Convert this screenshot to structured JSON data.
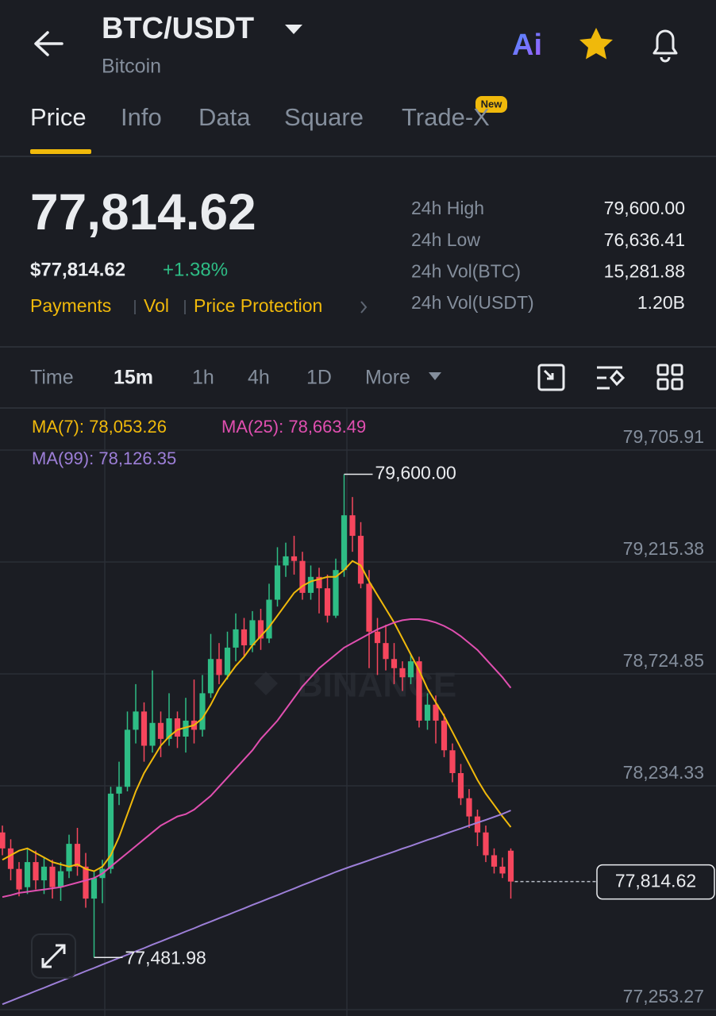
{
  "header": {
    "title": "BTC/USDT",
    "subtitle": "Bitcoin",
    "ai": "Ai"
  },
  "tabs": {
    "items": [
      "Price",
      "Info",
      "Data",
      "Square",
      "Trade-X"
    ],
    "badge": "New"
  },
  "ticker": {
    "price": "77,814.62",
    "fiat": "$77,814.62",
    "change": "+1.38%",
    "links": [
      "Payments",
      "Vol",
      "Price Protection"
    ],
    "stats": [
      {
        "label": "24h High",
        "value": "79,600.00"
      },
      {
        "label": "24h Low",
        "value": "76,636.41"
      },
      {
        "label": "24h Vol(BTC)",
        "value": "15,281.88"
      },
      {
        "label": "24h Vol(USDT)",
        "value": "1.20B"
      }
    ]
  },
  "intervals": [
    "Time",
    "15m",
    "1h",
    "4h",
    "1D",
    "More"
  ],
  "chart_data": {
    "type": "candlestick",
    "watermark": "BINANCE",
    "up_color": "#2ebd85",
    "down_color": "#f6465d",
    "ylim": [
      77242.8,
      79886.8
    ],
    "yticks": [
      {
        "value": 79705.91,
        "label": "79,705.91"
      },
      {
        "value": 79215.38,
        "label": "79,215.38"
      },
      {
        "value": 78724.85,
        "label": "78,724.85"
      },
      {
        "value": 78234.33,
        "label": "78,234.33"
      },
      {
        "value": 77253.27,
        "label": "77,253.27"
      }
    ],
    "grid": true,
    "high_label": "79,600.00",
    "low_label": "77,481.98",
    "last_label": "77,814.62",
    "open": [
      78030,
      77960,
      77870,
      77790,
      77900,
      77820,
      77880,
      77790,
      77860,
      77980,
      77880,
      77740,
      77830,
      77870,
      78200,
      78230,
      78480,
      78560,
      78410,
      78510,
      78440,
      78530,
      78450,
      78520,
      78480,
      78640,
      78790,
      78720,
      78840,
      78920,
      78850,
      78960,
      78880,
      79050,
      79200,
      79240,
      79220,
      79080,
      79150,
      79100,
      78980,
      79180,
      79420,
      79330,
      79120,
      78910,
      78860,
      78790,
      78750,
      78710,
      78780,
      78520,
      78590,
      78520,
      78390,
      78290,
      78180,
      78100,
      78030,
      77930,
      77880,
      77950
    ],
    "high": [
      78060,
      78000,
      77900,
      77960,
      77950,
      77920,
      77910,
      77900,
      78020,
      78050,
      77940,
      77860,
      77910,
      78230,
      78340,
      78560,
      78680,
      78600,
      78740,
      78560,
      78640,
      78560,
      78620,
      78700,
      78720,
      78900,
      78860,
      78910,
      78990,
      78970,
      79000,
      79010,
      79120,
      79280,
      79300,
      79330,
      79260,
      79200,
      79190,
      79160,
      79230,
      79600,
      79500,
      79390,
      79180,
      78970,
      78940,
      78860,
      78780,
      78810,
      78800,
      78640,
      78630,
      78550,
      78420,
      78330,
      78220,
      78130,
      78060,
      77960,
      77920,
      77960
    ],
    "low": [
      77930,
      77820,
      77750,
      77760,
      77780,
      77760,
      77740,
      77730,
      77830,
      77840,
      77700,
      77481.98,
      77720,
      77850,
      78150,
      78210,
      78420,
      78340,
      78380,
      78360,
      78410,
      78400,
      78380,
      78420,
      78450,
      78620,
      78680,
      78700,
      78780,
      78800,
      78820,
      78830,
      78860,
      79020,
      79150,
      79160,
      79050,
      79050,
      78990,
      78950,
      78970,
      79150,
      79260,
      79100,
      78750,
      78720,
      78740,
      78680,
      78650,
      78680,
      78490,
      78480,
      78420,
      78360,
      78250,
      78150,
      78050,
      77970,
      77900,
      77850,
      77830,
      77740
    ],
    "close": [
      77960,
      77870,
      77780,
      77900,
      77820,
      77880,
      77790,
      77860,
      77980,
      77880,
      77740,
      77830,
      77870,
      78200,
      78230,
      78480,
      78560,
      78410,
      78510,
      78440,
      78530,
      78450,
      78520,
      78480,
      78640,
      78790,
      78720,
      78840,
      78920,
      78850,
      78960,
      78880,
      79050,
      79200,
      79240,
      79220,
      79080,
      79150,
      79100,
      78980,
      79180,
      79420,
      79330,
      79120,
      78910,
      78860,
      78790,
      78750,
      78710,
      78780,
      78520,
      78590,
      78520,
      78390,
      78290,
      78180,
      78100,
      78030,
      77930,
      77880,
      77850,
      77814.62
    ],
    "series": [
      {
        "name": "MA(7): 78,053.26",
        "color": "#f0b90b",
        "values": [
          77910,
          77930,
          77950,
          77960,
          77940,
          77920,
          77900,
          77890,
          77880,
          77890,
          77870,
          77860,
          77880,
          77930,
          78010,
          78110,
          78210,
          78290,
          78350,
          78410,
          78450,
          78480,
          78490,
          78500,
          78530,
          78590,
          78660,
          78710,
          78760,
          78800,
          78850,
          78890,
          78930,
          78980,
          79030,
          79080,
          79110,
          79130,
          79140,
          79150,
          79150,
          79180,
          79220,
          79200,
          79130,
          79070,
          79010,
          78950,
          78880,
          78810,
          78740,
          78660,
          78600,
          78540,
          78470,
          78400,
          78330,
          78260,
          78200,
          78150,
          78100,
          78053.26
        ]
      },
      {
        "name": "MA(25): 78,663.49",
        "color": "#e04fb0",
        "values": [
          77747,
          77755,
          77765,
          77770,
          77775,
          77780,
          77785,
          77790,
          77800,
          77810,
          77820,
          77830,
          77850,
          77880,
          77910,
          77940,
          77970,
          78000,
          78030,
          78060,
          78080,
          78100,
          78110,
          78130,
          78160,
          78190,
          78230,
          78270,
          78310,
          78350,
          78390,
          78440,
          78480,
          78520,
          78570,
          78620,
          78670,
          78710,
          78750,
          78780,
          78810,
          78840,
          78860,
          78880,
          78900,
          78920,
          78935,
          78950,
          78960,
          78965,
          78965,
          78960,
          78950,
          78935,
          78915,
          78890,
          78860,
          78830,
          78790,
          78750,
          78710,
          78663.49
        ]
      },
      {
        "name": "MA(99): 78,126.35",
        "color": "#9d7fd8",
        "values": [
          77277,
          77291,
          77306,
          77320,
          77335,
          77349,
          77364,
          77378,
          77393,
          77407,
          77422,
          77436,
          77451,
          77465,
          77480,
          77494,
          77509,
          77523,
          77538,
          77552,
          77567,
          77581,
          77596,
          77610,
          77625,
          77639,
          77654,
          77668,
          77683,
          77697,
          77712,
          77726,
          77741,
          77755,
          77770,
          77784,
          77799,
          77813,
          77828,
          77842,
          77857,
          77870,
          77883,
          77895,
          77908,
          77921,
          77933,
          77946,
          77959,
          77971,
          77984,
          77997,
          78009,
          78022,
          78035,
          78047,
          78060,
          78073,
          78085,
          78098,
          78111,
          78126.35
        ]
      }
    ]
  }
}
